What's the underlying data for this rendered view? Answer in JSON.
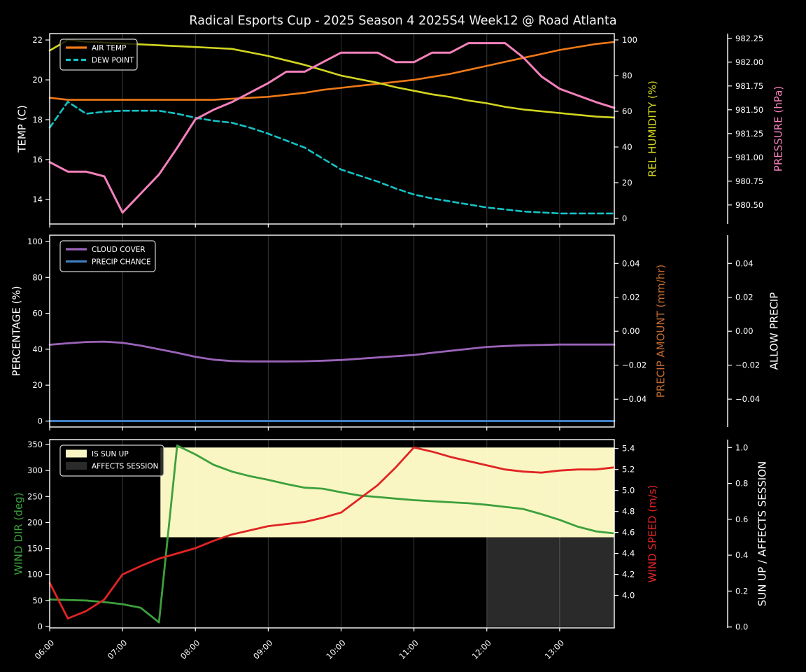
{
  "title": "Radical Esports Cup - 2025 Season 4 2025S4 Week12 @ Road Atlanta",
  "colors": {
    "background": "#000000",
    "foreground": "#ffffff",
    "grid": "#ffffff",
    "air_temp": "#ef7918",
    "dew_point": "#16c2c6",
    "rel_humidity": "#d2d520",
    "pressure": "#f480bc",
    "cloud_cover": "#9a63b8",
    "precip_chance": "#3f7fc1",
    "precip_amount_label": "#c16a2f",
    "wind_dir": "#3da03d",
    "wind_speed": "#e02424",
    "sun_up_fill": "#faf6c3",
    "affects_session_fill": "#2a2a2a",
    "legend_border": "#cfcfcf"
  },
  "chart_data": {
    "type": "line",
    "x": {
      "start_hour": 6.0,
      "end_hour": 13.75,
      "ticks": [
        {
          "hour": 6,
          "label": "06:00"
        },
        {
          "hour": 7,
          "label": "07:00"
        },
        {
          "hour": 8,
          "label": "08:00"
        },
        {
          "hour": 9,
          "label": "09:00"
        },
        {
          "hour": 10,
          "label": "10:00"
        },
        {
          "hour": 11,
          "label": "11:00"
        },
        {
          "hour": 12,
          "label": "12:00"
        },
        {
          "hour": 13,
          "label": "13:00"
        }
      ]
    },
    "time_hours": [
      6,
      6.25,
      6.5,
      6.75,
      7,
      7.25,
      7.5,
      7.75,
      8,
      8.25,
      8.5,
      8.75,
      9,
      9.25,
      9.5,
      9.75,
      10,
      10.25,
      10.5,
      10.75,
      11,
      11.25,
      11.5,
      11.75,
      12,
      12.25,
      12.5,
      12.75,
      13,
      13.25,
      13.5,
      13.75
    ],
    "panels": [
      {
        "id": "temperature",
        "axes": {
          "left": {
            "label": "TEMP (C)",
            "color": "#ffffff",
            "ylim": [
              12.77,
              22.32
            ],
            "ticks": [
              {
                "v": 14,
                "label": "14"
              },
              {
                "v": 16,
                "label": "16"
              },
              {
                "v": 18,
                "label": "18"
              },
              {
                "v": 20,
                "label": "20"
              },
              {
                "v": 22,
                "label": "22"
              }
            ]
          },
          "right_inner": {
            "label": "REL HUMIDITY (%)",
            "color": "#d2d520",
            "ylim": [
              -3.14,
              103.53
            ],
            "ticks": [
              {
                "v": 0,
                "label": "0"
              },
              {
                "v": 20,
                "label": "20"
              },
              {
                "v": 40,
                "label": "40"
              },
              {
                "v": 60,
                "label": "60"
              },
              {
                "v": 80,
                "label": "80"
              },
              {
                "v": 100,
                "label": "100"
              }
            ]
          },
          "right_outer": {
            "label": "PRESSURE (hPa)",
            "color": "#f480bc",
            "ylim": [
              980.3,
              982.3
            ],
            "ticks": [
              {
                "v": 980.5,
                "label": "980.50"
              },
              {
                "v": 980.75,
                "label": "980.75"
              },
              {
                "v": 981.0,
                "label": "981.00"
              },
              {
                "v": 981.25,
                "label": "981.25"
              },
              {
                "v": 981.5,
                "label": "981.50"
              },
              {
                "v": 981.75,
                "label": "981.75"
              },
              {
                "v": 982.0,
                "label": "982.00"
              },
              {
                "v": 982.25,
                "label": "982.25"
              }
            ]
          }
        },
        "series": [
          {
            "name": "AIR TEMP",
            "axis": "left",
            "color": "#ef7918",
            "dash": false,
            "lw": 2.6,
            "values": [
              19.1,
              19.0,
              19.0,
              19.0,
              19.0,
              19.0,
              19.0,
              19.0,
              19.0,
              19.0,
              19.05,
              19.1,
              19.15,
              19.25,
              19.35,
              19.5,
              19.6,
              19.7,
              19.8,
              19.9,
              20.0,
              20.15,
              20.3,
              20.5,
              20.7,
              20.9,
              21.1,
              21.3,
              21.5,
              21.65,
              21.8,
              21.9
            ]
          },
          {
            "name": "DEW POINT",
            "axis": "left",
            "color": "#16c2c6",
            "dash": true,
            "lw": 2.6,
            "values": [
              17.6,
              18.9,
              18.3,
              18.4,
              18.45,
              18.45,
              18.45,
              18.3,
              18.1,
              17.95,
              17.85,
              17.6,
              17.3,
              16.95,
              16.6,
              16.05,
              15.5,
              15.2,
              14.9,
              14.55,
              14.25,
              14.05,
              13.9,
              13.75,
              13.6,
              13.5,
              13.4,
              13.35,
              13.3,
              13.3,
              13.3,
              13.3
            ]
          },
          {
            "name": "REL HUMIDITY",
            "axis": "right_inner",
            "color": "#d2d520",
            "dash": false,
            "lw": 2.6,
            "values": [
              94,
              100,
              99,
              98.5,
              98,
              97.5,
              97,
              96.5,
              96,
              95.5,
              95,
              93,
              91,
              88.5,
              86,
              83,
              80,
              78,
              76,
              73.5,
              71.5,
              69.5,
              68,
              66,
              64.5,
              62.5,
              61,
              60,
              59,
              58,
              57,
              56.5
            ]
          },
          {
            "name": "PRESSURE",
            "axis": "right_outer",
            "color": "#f480bc",
            "dash": false,
            "lw": 3.0,
            "values": [
              980.95,
              980.85,
              980.85,
              980.8,
              980.42,
              980.62,
              980.82,
              981.1,
              981.4,
              981.5,
              981.58,
              981.68,
              981.78,
              981.9,
              981.9,
              982.0,
              982.1,
              982.1,
              982.1,
              982.0,
              982.0,
              982.1,
              982.1,
              982.2,
              982.2,
              982.2,
              982.05,
              981.85,
              981.72,
              981.65,
              981.58,
              981.52
            ]
          }
        ],
        "legend": {
          "entries": [
            {
              "label": "AIR TEMP",
              "swatch": "line",
              "color": "#ef7918"
            },
            {
              "label": "DEW POINT",
              "swatch": "dashed-line",
              "color": "#16c2c6"
            }
          ]
        }
      },
      {
        "id": "percentage",
        "axes": {
          "left": {
            "label": "PERCENTAGE (%)",
            "color": "#ffffff",
            "ylim": [
              -3.31,
              103.51
            ],
            "ticks": [
              {
                "v": 0,
                "label": "0"
              },
              {
                "v": 20,
                "label": "20"
              },
              {
                "v": 40,
                "label": "40"
              },
              {
                "v": 60,
                "label": "60"
              },
              {
                "v": 80,
                "label": "80"
              },
              {
                "v": 100,
                "label": "100"
              }
            ]
          },
          "right_inner": {
            "label": "PRECIP AMOUNT (mm/hr)",
            "color": "#c16a2f",
            "ylim": [
              -0.0564,
              0.0566
            ],
            "ticks": [
              {
                "v": -0.04,
                "label": "−0.04"
              },
              {
                "v": -0.02,
                "label": "−0.02"
              },
              {
                "v": 0,
                "label": "0.00"
              },
              {
                "v": 0.02,
                "label": "0.02"
              },
              {
                "v": 0.04,
                "label": "0.04"
              }
            ]
          },
          "right_outer": {
            "label": "ALLOW PRECIP",
            "color": "#ffffff",
            "ylim": [
              -0.0564,
              0.0566
            ],
            "ticks": [
              {
                "v": -0.04,
                "label": "−0.04"
              },
              {
                "v": -0.02,
                "label": "−0.02"
              },
              {
                "v": 0,
                "label": "0.00"
              },
              {
                "v": 0.02,
                "label": "0.02"
              },
              {
                "v": 0.04,
                "label": "0.04"
              }
            ]
          }
        },
        "series": [
          {
            "name": "CLOUD COVER",
            "axis": "left",
            "color": "#9a63b8",
            "dash": false,
            "lw": 2.8,
            "values": [
              42.5,
              43.3,
              44.0,
              44.2,
              43.6,
              42.0,
              40.0,
              38.0,
              35.8,
              34.2,
              33.4,
              33.2,
              33.2,
              33.2,
              33.3,
              33.6,
              34.0,
              34.7,
              35.4,
              36.1,
              36.8,
              38.0,
              39.1,
              40.2,
              41.3,
              41.8,
              42.2,
              42.4,
              42.6,
              42.6,
              42.6,
              42.6
            ]
          },
          {
            "name": "PRECIP CHANCE",
            "axis": "left",
            "color": "#3f7fc1",
            "dash": false,
            "lw": 3.0,
            "values": [
              0,
              0,
              0,
              0,
              0,
              0,
              0,
              0,
              0,
              0,
              0,
              0,
              0,
              0,
              0,
              0,
              0,
              0,
              0,
              0,
              0,
              0,
              0,
              0,
              0,
              0,
              0,
              0,
              0,
              0,
              0,
              0
            ]
          }
        ],
        "legend": {
          "entries": [
            {
              "label": "CLOUD COVER",
              "swatch": "line",
              "color": "#9a63b8"
            },
            {
              "label": "PRECIP CHANCE",
              "swatch": "line",
              "color": "#3f7fc1"
            }
          ]
        }
      },
      {
        "id": "wind",
        "axes": {
          "left": {
            "label": "WIND DIR (deg)",
            "color": "#3da03d",
            "ylim": [
              -2.69,
              359.42
            ],
            "ticks": [
              {
                "v": 0,
                "label": "0"
              },
              {
                "v": 50,
                "label": "50"
              },
              {
                "v": 100,
                "label": "100"
              },
              {
                "v": 150,
                "label": "150"
              },
              {
                "v": 200,
                "label": "200"
              },
              {
                "v": 250,
                "label": "250"
              },
              {
                "v": 300,
                "label": "300"
              },
              {
                "v": 350,
                "label": "350"
              }
            ]
          },
          "right_inner": {
            "label": "WIND SPEED (m/s)",
            "color": "#e02424",
            "ylim": [
              3.69,
              5.485
            ],
            "ticks": [
              {
                "v": 4.0,
                "label": "4.0"
              },
              {
                "v": 4.2,
                "label": "4.2"
              },
              {
                "v": 4.4,
                "label": "4.4"
              },
              {
                "v": 4.6,
                "label": "4.6"
              },
              {
                "v": 4.8,
                "label": "4.8"
              },
              {
                "v": 5.0,
                "label": "5.0"
              },
              {
                "v": 5.2,
                "label": "5.2"
              },
              {
                "v": 5.4,
                "label": "5.4"
              }
            ]
          },
          "right_outer": {
            "label": "SUN UP / AFFECTS SESSION",
            "color": "#ffffff",
            "ylim": [
              -0.0051,
              1.0441
            ],
            "ticks": [
              {
                "v": 0,
                "label": "0.0"
              },
              {
                "v": 0.2,
                "label": "0.2"
              },
              {
                "v": 0.4,
                "label": "0.4"
              },
              {
                "v": 0.6,
                "label": "0.6"
              },
              {
                "v": 0.8,
                "label": "0.8"
              },
              {
                "v": 1.0,
                "label": "1.0"
              }
            ]
          }
        },
        "bands": [
          {
            "name": "IS SUN UP",
            "axis": "right_outer",
            "from_hour": 7.52,
            "to_hour": 13.75,
            "band": [
              0.5,
              1.0
            ],
            "color": "#faf6c3"
          },
          {
            "name": "AFFECTS SESSION",
            "axis": "right_outer",
            "from_hour": 12.0,
            "to_hour": 13.75,
            "band": [
              0.0,
              0.5
            ],
            "color": "#2a2a2a"
          }
        ],
        "series": [
          {
            "name": "WIND DIR",
            "axis": "left",
            "color": "#3da03d",
            "dash": false,
            "lw": 2.8,
            "values": [
              52,
              51,
              50,
              47,
              43,
              36,
              8,
              348,
              331,
              311,
              298,
              289,
              282,
              274,
              267,
              265,
              258,
              252,
              249,
              246,
              243,
              241,
              239,
              237,
              234,
              230,
              226,
              216,
              205,
              192,
              183,
              179
            ]
          },
          {
            "name": "WIND SPEED",
            "axis": "right_inner",
            "color": "#e02424",
            "dash": false,
            "lw": 2.8,
            "values": [
              4.12,
              3.78,
              3.85,
              3.96,
              4.2,
              4.28,
              4.35,
              4.4,
              4.45,
              4.52,
              4.58,
              4.62,
              4.66,
              4.68,
              4.7,
              4.74,
              4.79,
              4.92,
              5.05,
              5.22,
              5.41,
              5.37,
              5.32,
              5.28,
              5.24,
              5.2,
              5.18,
              5.17,
              5.19,
              5.2,
              5.2,
              5.22
            ]
          }
        ],
        "legend": {
          "entries": [
            {
              "label": "IS SUN UP",
              "swatch": "patch",
              "color": "#faf6c3"
            },
            {
              "label": "AFFECTS SESSION",
              "swatch": "patch",
              "color": "#2a2a2a"
            }
          ]
        }
      }
    ]
  }
}
